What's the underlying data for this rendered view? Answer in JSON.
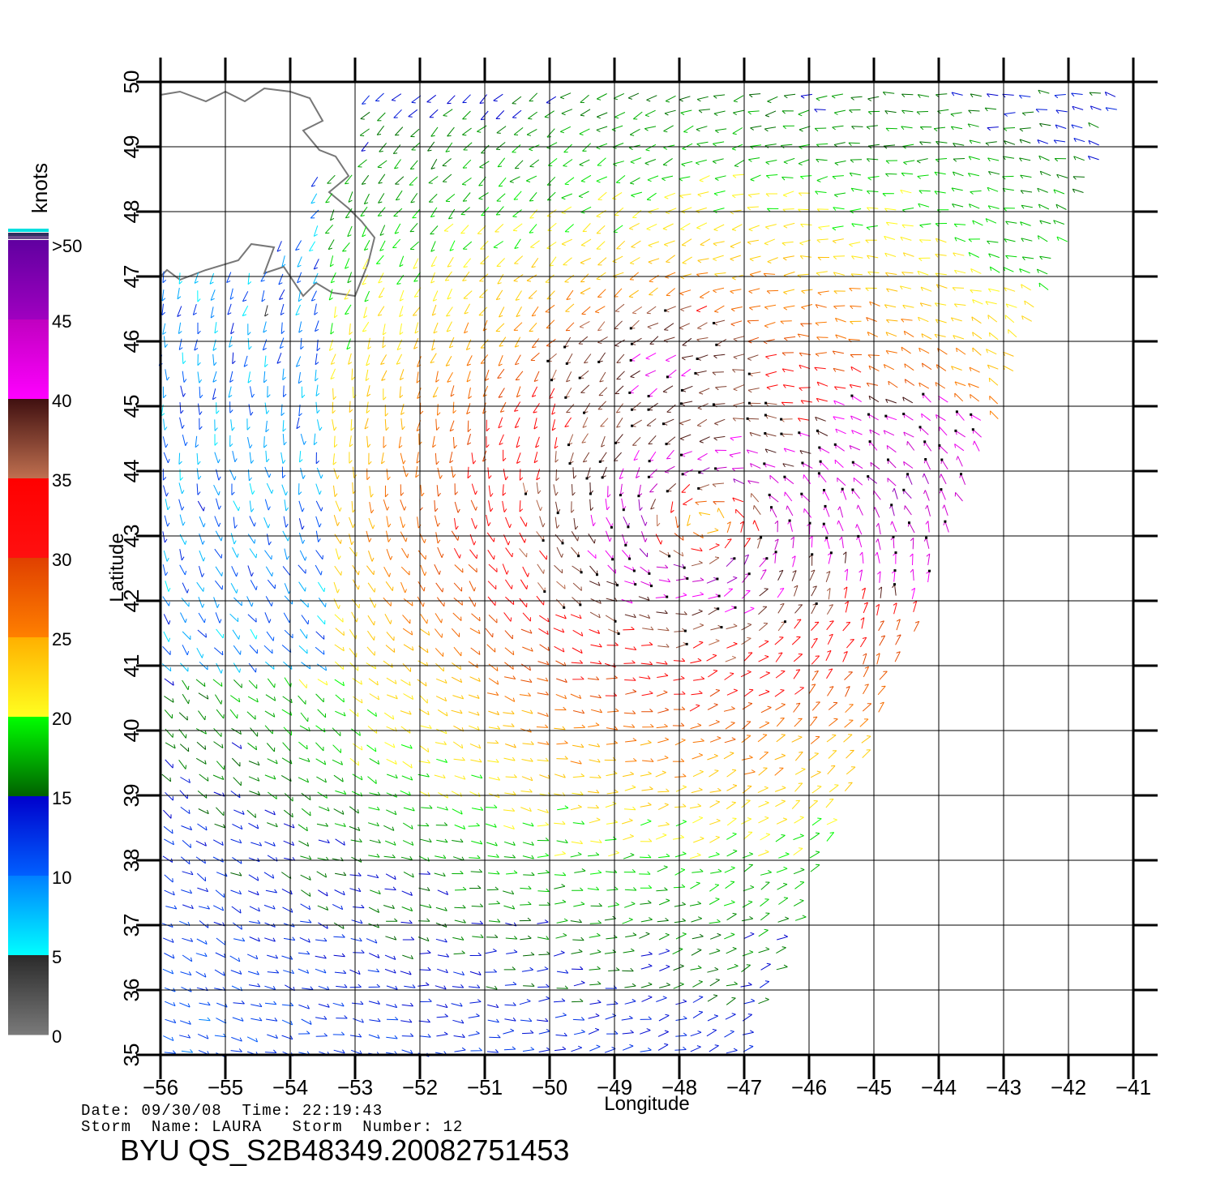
{
  "map": {
    "xlabel": "Longitude",
    "ylabel": "Latitude",
    "x_ticks": [
      "−56",
      "−55",
      "−54",
      "−53",
      "−52",
      "−51",
      "−50",
      "−49",
      "−48",
      "−47",
      "−46",
      "−45",
      "−44",
      "−43",
      "−42",
      "−41"
    ],
    "y_ticks": [
      "35",
      "36",
      "37",
      "38",
      "39",
      "40",
      "41",
      "42",
      "43",
      "44",
      "45",
      "46",
      "47",
      "48",
      "49",
      "50"
    ],
    "lon_range": [
      -56,
      -41
    ],
    "lat_range": [
      35,
      50
    ]
  },
  "colorbar": {
    "title": "knots",
    "labels": [
      "0",
      "5",
      "10",
      "15",
      "20",
      "25",
      "30",
      "35",
      "40",
      "45",
      ">50"
    ],
    "colors": {
      "0-5": [
        "#7a7a7a",
        "#2a2a2a"
      ],
      "5-10": [
        "#00ffff",
        "#0080ff"
      ],
      "10-15": [
        "#0060ff",
        "#0000cc"
      ],
      "15-20": [
        "#006000",
        "#00ff00"
      ],
      "20-25": [
        "#ffff20",
        "#ffb000"
      ],
      "25-30": [
        "#ff8000",
        "#e04000"
      ],
      "30-35": [
        "#ff1010",
        "#ff0000"
      ],
      "35-40": [
        "#c07050",
        "#401010"
      ],
      "40-45": [
        "#ff00ff",
        "#c000c0"
      ],
      "45-50": [
        "#a000c0",
        "#6000a0"
      ]
    }
  },
  "footer": {
    "date_label": "Date:",
    "date_value": "09/30/08",
    "time_label": "Time:",
    "time_value": "22:19:43",
    "storm_name_label": "Storm  Name:",
    "storm_name_value": "LAURA",
    "storm_number_label": "Storm  Number:",
    "storm_number_value": "12",
    "product_id": "BYU  QS_S2B48349.20082751453"
  },
  "storm": {
    "center_lon": -47.6,
    "center_lat": 43.2,
    "max_wind_knots": 50
  }
}
